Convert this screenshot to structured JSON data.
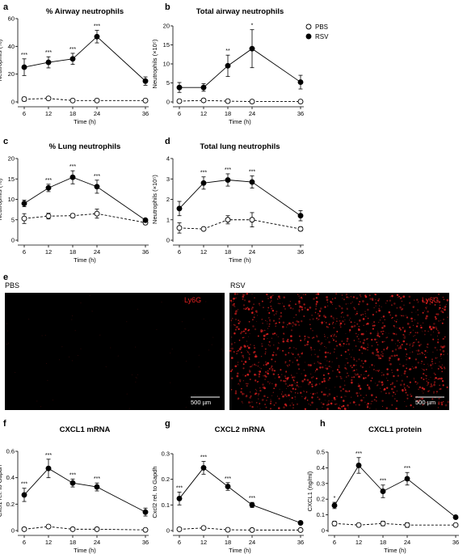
{
  "legend": {
    "pbs": "PBS",
    "rsv": "RSV"
  },
  "images": {
    "letter": "e",
    "left_label": "PBS",
    "right_label": "RSV",
    "stain": "Ly6G",
    "scale_bar": "500 µm",
    "stain_color": "#e02020"
  },
  "chart_data": [
    {
      "id": "a",
      "letter": "a",
      "type": "line",
      "title": "% Airway neutrophils",
      "xlabel": "Time (h)",
      "ylabel": "Neutrophils (%)",
      "x": [
        6,
        12,
        18,
        24,
        36
      ],
      "yticks": [
        0,
        20,
        40,
        60
      ],
      "ylim": [
        0,
        60
      ],
      "series": [
        {
          "name": "PBS",
          "values": [
            2,
            2.5,
            1,
            1,
            1
          ],
          "err": [
            1.5,
            1,
            0.8,
            0.5,
            0.5
          ]
        },
        {
          "name": "RSV",
          "values": [
            25,
            28.5,
            31,
            47,
            15
          ],
          "err": [
            6,
            4,
            4,
            4.5,
            3
          ]
        }
      ],
      "stars": [
        "***",
        "***",
        "***",
        "***",
        ""
      ]
    },
    {
      "id": "b",
      "letter": "b",
      "type": "line",
      "title": "Total airway neutrophils",
      "xlabel": "Time (h)",
      "ylabel": "Neutrophils (×10⁵)",
      "x": [
        6,
        12,
        18,
        24,
        36
      ],
      "yticks": [
        0,
        5,
        10,
        15,
        20
      ],
      "ylim": [
        0,
        20
      ],
      "series": [
        {
          "name": "PBS",
          "values": [
            0.2,
            0.4,
            0.2,
            0.1,
            0.1
          ],
          "err": [
            0.2,
            0.2,
            0.1,
            0.1,
            0.1
          ]
        },
        {
          "name": "RSV",
          "values": [
            3.8,
            3.8,
            9.5,
            14,
            5.2
          ],
          "err": [
            1.3,
            1,
            2.8,
            5,
            1.8
          ]
        }
      ],
      "stars": [
        "",
        "",
        "**",
        "*",
        ""
      ],
      "show_legend": true
    },
    {
      "id": "c",
      "letter": "c",
      "type": "line",
      "title": "% Lung neutrophils",
      "xlabel": "Time (h)",
      "ylabel": "Neutrophils (%)",
      "x": [
        6,
        12,
        18,
        24,
        36
      ],
      "yticks": [
        0,
        5,
        10,
        15,
        20
      ],
      "ylim": [
        0,
        20
      ],
      "series": [
        {
          "name": "PBS",
          "values": [
            5.3,
            5.9,
            6,
            6.5,
            4.3
          ],
          "err": [
            1.2,
            0.7,
            0.5,
            1.1,
            0.5
          ]
        },
        {
          "name": "RSV",
          "values": [
            9,
            12.8,
            15.4,
            13.1,
            4.9
          ],
          "err": [
            0.8,
            0.9,
            1.6,
            1.6,
            0.4
          ]
        }
      ],
      "stars": [
        "",
        "***",
        "***",
        "***",
        ""
      ]
    },
    {
      "id": "d",
      "letter": "d",
      "type": "line",
      "title": "Total lung neutrophils",
      "xlabel": "Time (h)",
      "ylabel": "Neutrophils (×10⁵)",
      "x": [
        6,
        12,
        18,
        24,
        36
      ],
      "yticks": [
        0,
        1,
        2,
        3,
        4
      ],
      "ylim": [
        0,
        4
      ],
      "series": [
        {
          "name": "PBS",
          "values": [
            0.6,
            0.55,
            1,
            1,
            0.55
          ],
          "err": [
            0.25,
            0.05,
            0.2,
            0.35,
            0.1
          ]
        },
        {
          "name": "RSV",
          "values": [
            1.55,
            2.8,
            2.95,
            2.85,
            1.2
          ],
          "err": [
            0.35,
            0.3,
            0.3,
            0.3,
            0.25
          ]
        }
      ],
      "stars": [
        "",
        "***",
        "***",
        "***",
        ""
      ]
    },
    {
      "id": "f",
      "letter": "f",
      "type": "line",
      "title": "CXCL1 mRNA",
      "xlabel": "Time (h)",
      "ylabel": "Cxcl1 rel. to Gapdh",
      "x": [
        6,
        12,
        18,
        24,
        36
      ],
      "yticks": [
        0,
        0.2,
        0.4,
        0.6
      ],
      "ylim": [
        0,
        0.6
      ],
      "series": [
        {
          "name": "PBS",
          "values": [
            0.01,
            0.03,
            0.01,
            0.01,
            0.005
          ],
          "err": [
            0.01,
            0.01,
            0.005,
            0.005,
            0.005
          ]
        },
        {
          "name": "RSV",
          "values": [
            0.27,
            0.47,
            0.36,
            0.33,
            0.14
          ],
          "err": [
            0.05,
            0.07,
            0.03,
            0.03,
            0.03
          ]
        }
      ],
      "stars": [
        "***",
        "***",
        "***",
        "***",
        ""
      ]
    },
    {
      "id": "g",
      "letter": "g",
      "type": "line",
      "title": "CXCL2 mRNA",
      "xlabel": "Time (h)",
      "ylabel": "Cxcl2 rel. to Gapdh",
      "x": [
        6,
        12,
        18,
        24,
        36
      ],
      "yticks": [
        0,
        0.1,
        0.2,
        0.3
      ],
      "ylim": [
        0,
        0.3
      ],
      "series": [
        {
          "name": "PBS",
          "values": [
            0.005,
            0.01,
            0.003,
            0.002,
            0.002
          ],
          "err": [
            0.003,
            0.004,
            0.002,
            0.001,
            0.001
          ]
        },
        {
          "name": "RSV",
          "values": [
            0.125,
            0.245,
            0.172,
            0.1,
            0.03
          ],
          "err": [
            0.025,
            0.025,
            0.015,
            0.01,
            0.005
          ]
        }
      ],
      "stars": [
        "***",
        "***",
        "***",
        "***",
        ""
      ]
    },
    {
      "id": "h",
      "letter": "h",
      "type": "line",
      "title": "CXCL1 protein",
      "xlabel": "Time (h)",
      "ylabel": "CXCL1 (ng/ml)",
      "x": [
        6,
        12,
        18,
        24,
        36
      ],
      "yticks": [
        0,
        0.1,
        0.2,
        0.3,
        0.4,
        0.5
      ],
      "ylim": [
        0,
        0.5
      ],
      "series": [
        {
          "name": "PBS",
          "values": [
            0.045,
            0.035,
            0.045,
            0.035,
            0.035
          ],
          "err": [
            0.015,
            0.01,
            0.015,
            0.015,
            0.01
          ]
        },
        {
          "name": "RSV",
          "values": [
            0.16,
            0.415,
            0.25,
            0.33,
            0.085
          ],
          "err": [
            0.02,
            0.05,
            0.04,
            0.04,
            0.01
          ]
        }
      ],
      "stars": [
        "*",
        "***",
        "***",
        "***",
        ""
      ]
    }
  ]
}
